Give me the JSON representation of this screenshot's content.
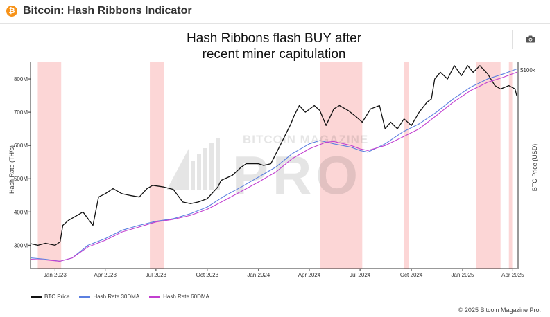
{
  "header": {
    "title": "Bitcoin: Hash Ribbons Indicator",
    "logo_glyph": "₿"
  },
  "footer": {
    "copyright": "© 2025 Bitcoin Magazine Pro."
  },
  "watermark": {
    "text_top": "BITCOIN MAGAZINE",
    "text_main": "PRO"
  },
  "colors": {
    "btc_price": "#111111",
    "hash_30dma": "#5b7fe0",
    "hash_60dma": "#c23fd0",
    "capitulation": "#fbcfcf",
    "logo": "#f7931a"
  },
  "chart_data": {
    "type": "line",
    "title_lines": [
      "Hash Ribbons flash BUY after",
      "recent miner capitulation"
    ],
    "xlabel": "",
    "ylabel": "Hash Rate (TH/s)",
    "y2label": "BTC Price (USD)",
    "x_range": [
      "2022-11-18",
      "2025-04-08"
    ],
    "ylim": [
      230,
      850
    ],
    "y_ticks": [
      300,
      400,
      500,
      600,
      700,
      800
    ],
    "y_tick_labels": [
      "300M",
      "400M",
      "500M",
      "600M",
      "700M",
      "800M"
    ],
    "y2_tick_labels": [
      "$100k"
    ],
    "x_ticks": [
      "2023-01-01",
      "2023-04-01",
      "2023-07-01",
      "2023-10-01",
      "2024-01-01",
      "2024-04-01",
      "2024-07-01",
      "2024-10-01",
      "2025-01-01",
      "2025-04-01"
    ],
    "x_tick_labels": [
      "Jan 2023",
      "Apr 2023",
      "Jul 2023",
      "Oct 2023",
      "Jan 2024",
      "Apr 2024",
      "Jul 2024",
      "Oct 2024",
      "Jan 2025",
      "Apr 2025"
    ],
    "shaded_periods": [
      [
        "2022-12-01",
        "2023-01-12"
      ],
      [
        "2023-06-20",
        "2023-07-15"
      ],
      [
        "2024-04-20",
        "2024-07-05"
      ],
      [
        "2024-09-18",
        "2024-09-27"
      ],
      [
        "2025-01-25",
        "2025-03-10"
      ],
      [
        "2025-03-25",
        "2025-03-31"
      ]
    ],
    "series": [
      {
        "name": "BTC Price",
        "x": [
          "2022-11-18",
          "2022-12-01",
          "2022-12-15",
          "2023-01-01",
          "2023-01-10",
          "2023-01-15",
          "2023-01-25",
          "2023-02-10",
          "2023-02-20",
          "2023-03-10",
          "2023-03-20",
          "2023-04-01",
          "2023-04-15",
          "2023-05-01",
          "2023-05-15",
          "2023-06-01",
          "2023-06-15",
          "2023-06-25",
          "2023-07-15",
          "2023-08-01",
          "2023-08-18",
          "2023-09-01",
          "2023-09-15",
          "2023-10-01",
          "2023-10-20",
          "2023-10-26",
          "2023-11-15",
          "2023-12-01",
          "2023-12-10",
          "2024-01-01",
          "2024-01-10",
          "2024-01-23",
          "2024-02-10",
          "2024-02-28",
          "2024-03-05",
          "2024-03-14",
          "2024-03-25",
          "2024-04-10",
          "2024-04-20",
          "2024-05-01",
          "2024-05-15",
          "2024-05-25",
          "2024-06-10",
          "2024-06-25",
          "2024-07-05",
          "2024-07-20",
          "2024-08-05",
          "2024-08-15",
          "2024-08-25",
          "2024-09-06",
          "2024-09-18",
          "2024-10-01",
          "2024-10-15",
          "2024-10-29",
          "2024-11-06",
          "2024-11-12",
          "2024-11-22",
          "2024-12-05",
          "2024-12-17",
          "2024-12-30",
          "2025-01-10",
          "2025-01-20",
          "2025-02-01",
          "2025-02-15",
          "2025-02-28",
          "2025-03-10",
          "2025-03-25",
          "2025-04-05",
          "2025-04-08"
        ],
        "values": [
          305,
          300,
          306,
          300,
          310,
          360,
          375,
          390,
          400,
          360,
          445,
          455,
          470,
          455,
          450,
          445,
          470,
          480,
          475,
          468,
          430,
          425,
          430,
          440,
          475,
          495,
          510,
          535,
          545,
          545,
          540,
          545,
          605,
          665,
          690,
          720,
          700,
          720,
          705,
          660,
          710,
          720,
          705,
          685,
          670,
          710,
          720,
          650,
          670,
          650,
          680,
          660,
          700,
          730,
          740,
          800,
          820,
          800,
          840,
          810,
          840,
          820,
          840,
          815,
          780,
          770,
          780,
          770,
          750
        ]
      },
      {
        "name": "Hash Rate 30DMA",
        "x": [
          "2022-11-18",
          "2022-12-15",
          "2023-01-10",
          "2023-02-01",
          "2023-03-01",
          "2023-04-01",
          "2023-05-01",
          "2023-06-01",
          "2023-07-01",
          "2023-08-01",
          "2023-09-01",
          "2023-10-01",
          "2023-11-01",
          "2023-12-01",
          "2024-01-01",
          "2024-02-01",
          "2024-03-01",
          "2024-04-01",
          "2024-04-20",
          "2024-05-15",
          "2024-06-15",
          "2024-07-01",
          "2024-07-15",
          "2024-08-15",
          "2024-09-15",
          "2024-10-15",
          "2024-11-15",
          "2024-12-15",
          "2025-01-15",
          "2025-02-15",
          "2025-03-15",
          "2025-04-08"
        ],
        "values": [
          262,
          258,
          252,
          262,
          300,
          320,
          345,
          360,
          372,
          380,
          395,
          415,
          448,
          475,
          505,
          535,
          575,
          605,
          615,
          605,
          595,
          585,
          580,
          605,
          640,
          665,
          700,
          740,
          775,
          800,
          815,
          830
        ]
      },
      {
        "name": "Hash Rate 60DMA",
        "x": [
          "2022-11-18",
          "2022-12-15",
          "2023-01-10",
          "2023-02-01",
          "2023-03-01",
          "2023-04-01",
          "2023-05-01",
          "2023-06-01",
          "2023-07-01",
          "2023-08-01",
          "2023-09-01",
          "2023-10-01",
          "2023-11-01",
          "2023-12-01",
          "2024-01-01",
          "2024-02-01",
          "2024-03-01",
          "2024-04-01",
          "2024-05-01",
          "2024-05-15",
          "2024-06-15",
          "2024-07-01",
          "2024-07-15",
          "2024-08-15",
          "2024-09-15",
          "2024-10-15",
          "2024-11-15",
          "2024-12-15",
          "2025-01-15",
          "2025-02-15",
          "2025-03-15",
          "2025-04-08"
        ],
        "values": [
          258,
          256,
          252,
          262,
          295,
          315,
          340,
          355,
          370,
          378,
          390,
          408,
          435,
          462,
          490,
          520,
          560,
          590,
          610,
          612,
          600,
          590,
          585,
          600,
          625,
          650,
          690,
          730,
          765,
          790,
          805,
          820
        ]
      }
    ]
  }
}
